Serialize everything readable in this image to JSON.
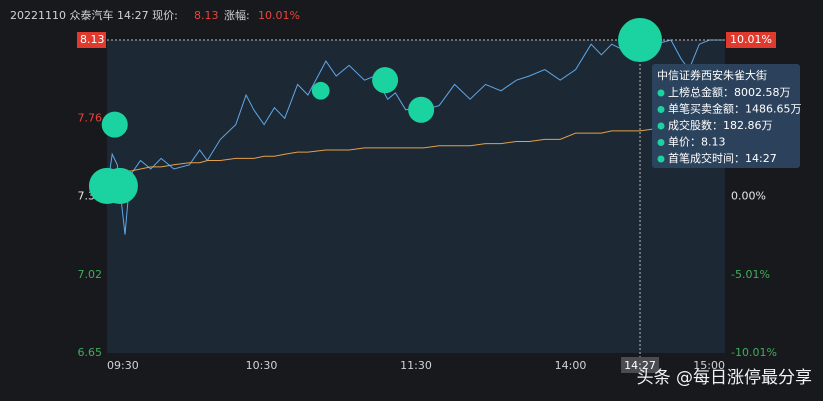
{
  "header": {
    "info": "20221110 众泰汽车 14:27 现价:",
    "price": "8.13",
    "change_label": "涨幅:",
    "change": "10.01%"
  },
  "watermark": "头条 @每日涨停最分享",
  "chart_data": {
    "type": "line",
    "x": [
      "09:30",
      "09:32",
      "09:34",
      "09:37",
      "09:39",
      "09:43",
      "09:47",
      "09:51",
      "09:56",
      "10:02",
      "10:06",
      "10:09",
      "10:14",
      "10:20",
      "10:24",
      "10:27",
      "10:31",
      "10:35",
      "10:39",
      "10:44",
      "10:48",
      "10:55",
      "10:59",
      "11:04",
      "11:10",
      "11:14",
      "11:19",
      "11:22",
      "11:26",
      "13:01",
      "13:03",
      "13:09",
      "13:15",
      "13:21",
      "13:27",
      "13:33",
      "13:39",
      "13:44",
      "13:50",
      "13:56",
      "14:02",
      "14:08",
      "14:12",
      "14:16",
      "14:21",
      "14:27",
      "14:33",
      "14:39",
      "14:43",
      "14:46",
      "14:50",
      "14:54",
      "15:00"
    ],
    "series": [
      {
        "color": "#5fa8e8",
        "values": [
          7.42,
          7.59,
          7.54,
          7.21,
          7.49,
          7.56,
          7.52,
          7.57,
          7.52,
          7.54,
          7.61,
          7.56,
          7.66,
          7.73,
          7.87,
          7.8,
          7.73,
          7.81,
          7.76,
          7.92,
          7.87,
          8.03,
          7.96,
          8.01,
          7.94,
          7.96,
          7.85,
          7.88,
          7.8,
          7.81,
          7.8,
          7.82,
          7.92,
          7.85,
          7.92,
          7.89,
          7.94,
          7.96,
          7.99,
          7.94,
          7.99,
          8.11,
          8.06,
          8.11,
          8.08,
          8.13,
          8.11,
          8.13,
          8.04,
          7.99,
          8.11,
          8.13,
          8.13
        ]
      },
      {
        "color": "#e2a04a",
        "values": [
          7.49,
          7.5,
          7.5,
          7.51,
          7.51,
          7.52,
          7.53,
          7.53,
          7.54,
          7.55,
          7.55,
          7.56,
          7.56,
          7.57,
          7.57,
          7.57,
          7.58,
          7.58,
          7.59,
          7.6,
          7.6,
          7.61,
          7.61,
          7.61,
          7.62,
          7.62,
          7.62,
          7.62,
          7.62,
          7.62,
          7.62,
          7.63,
          7.63,
          7.63,
          7.64,
          7.64,
          7.65,
          7.65,
          7.66,
          7.66,
          7.69,
          7.69,
          7.69,
          7.7,
          7.7,
          7.7,
          7.71,
          7.71,
          7.72,
          7.72,
          7.72,
          7.73,
          7.73
        ]
      }
    ],
    "bubbles": {
      "color": "#1bd3a0",
      "x": [
        "09:30",
        "09:35",
        "09:33",
        "10:53",
        "11:18",
        "13:02",
        "14:27"
      ],
      "values": [
        7.44,
        7.44,
        7.73,
        7.89,
        7.94,
        7.8,
        8.13
      ],
      "sizes": [
        5400,
        5400,
        2800,
        1300,
        2800,
        2800,
        8002.58
      ]
    },
    "base": 7.39,
    "ylim": [
      6.65,
      8.13
    ],
    "yticks": [
      6.65,
      7.02,
      7.39,
      7.76
    ],
    "y2lim": [
      -10.01,
      10.01
    ],
    "y2ticks": [
      {
        "value": -10.01,
        "label": "-10.01%"
      },
      {
        "value": -5.01,
        "label": "-5.01%"
      },
      {
        "value": 0,
        "label": "0.00%"
      }
    ],
    "xticks": [
      "09:30",
      "10:30",
      "11:30",
      "14:00",
      "15:00"
    ],
    "crosshair": {
      "time": "14:27",
      "price": 8.13,
      "pct": {
        "value": 10.01,
        "label": "10.01%"
      }
    },
    "tooltip": {
      "title": "中信证券西安朱雀大街",
      "rows": [
        "上榜总金额：8002.58万",
        "单笔买卖金额：1486.65万",
        "成交股数：182.86万",
        "单价：8.13",
        "首笔成交时间：14:27"
      ]
    }
  }
}
